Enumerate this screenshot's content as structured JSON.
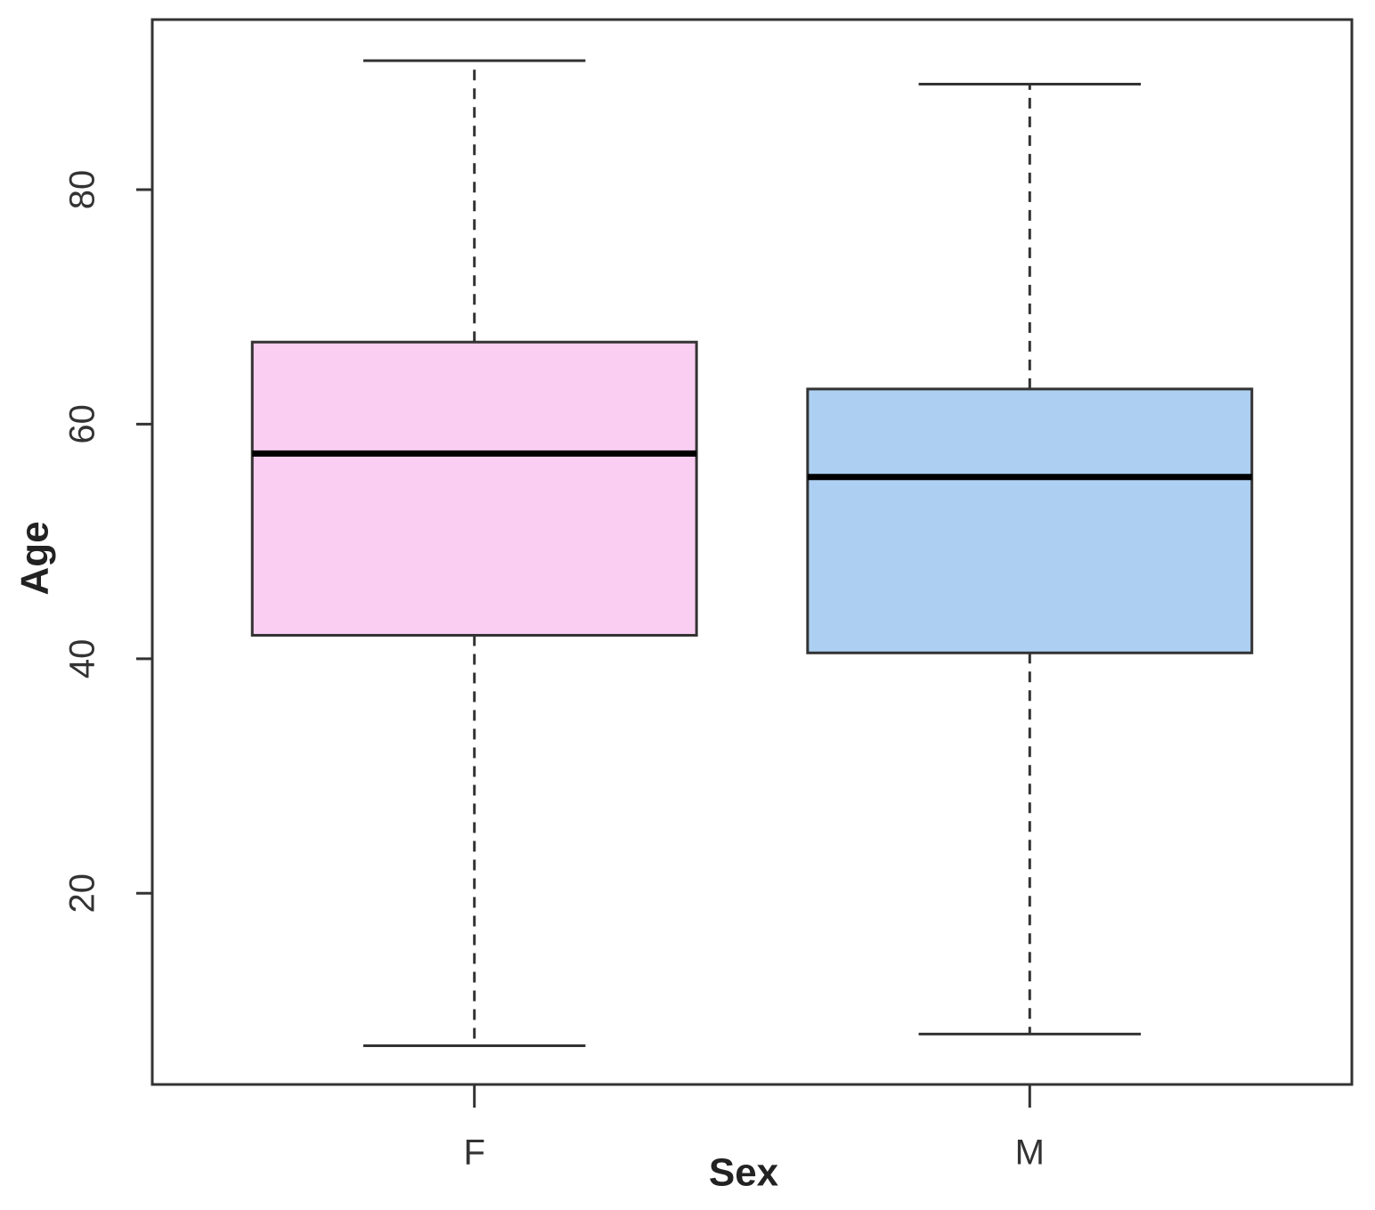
{
  "chart_data": {
    "type": "box",
    "x_label": "Sex",
    "y_label": "Age",
    "categories": [
      "F",
      "M"
    ],
    "colors": [
      "#f9cef2",
      "#add0f2"
    ],
    "min": [
      7,
      8
    ],
    "q1": [
      42,
      40.5
    ],
    "median": [
      57.5,
      55.5
    ],
    "q3": [
      67,
      63
    ],
    "max": [
      91,
      89
    ],
    "ylim": [
      3.7,
      94.5
    ],
    "yticks": [
      20,
      40,
      60,
      80
    ]
  }
}
